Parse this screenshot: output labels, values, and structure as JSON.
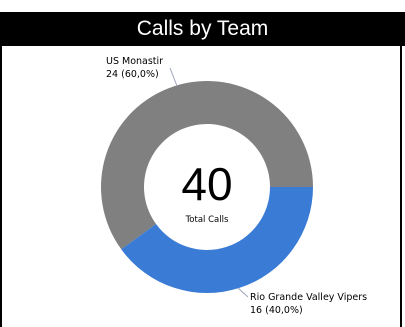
{
  "chart_data": {
    "type": "pie",
    "style": "donut",
    "title": "Calls by Team",
    "center_value": "40",
    "center_label": "Total Calls",
    "slices": [
      {
        "label": "US Monastir",
        "value": 24,
        "percent_text": "24 (60,0%)",
        "color": "#808080"
      },
      {
        "label": "Rio Grande Valley Vipers",
        "value": 16,
        "percent_text": "16 (40,0%)",
        "color": "#3a7bd5"
      }
    ]
  }
}
